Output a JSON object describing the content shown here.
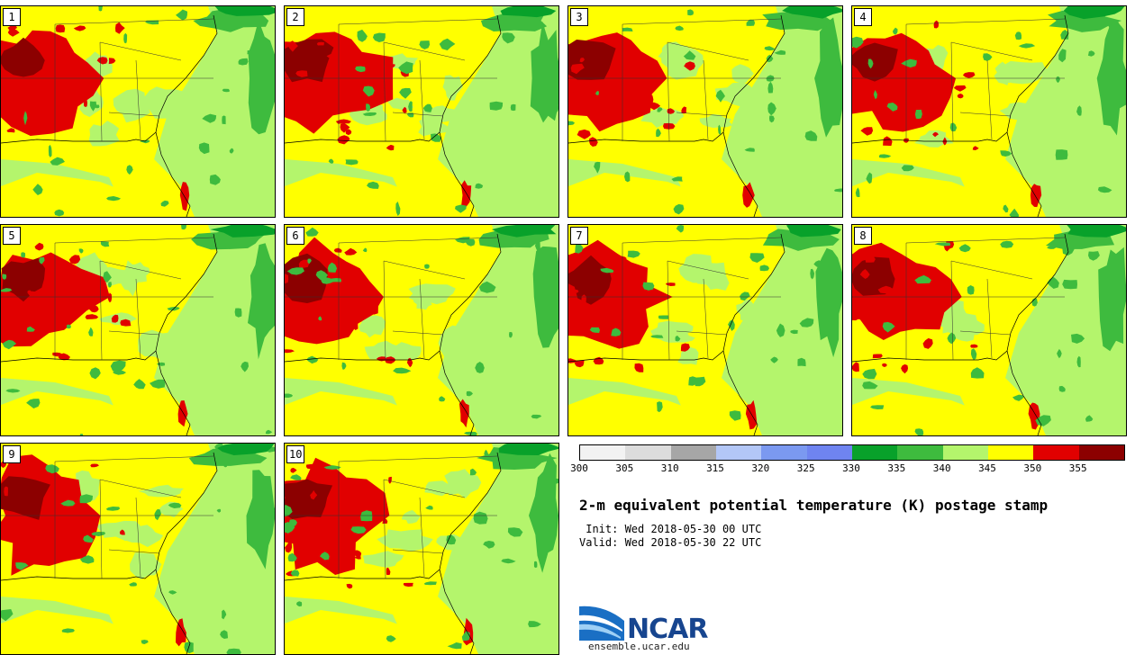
{
  "panels": [
    {
      "label": "1"
    },
    {
      "label": "2"
    },
    {
      "label": "3"
    },
    {
      "label": "4"
    },
    {
      "label": "5"
    },
    {
      "label": "6"
    },
    {
      "label": "7"
    },
    {
      "label": "8"
    },
    {
      "label": "9"
    },
    {
      "label": "10"
    }
  ],
  "colorbar": {
    "colors": [
      "#f2f2f2",
      "#dcdcdc",
      "#a6a6a6",
      "#b3c7f7",
      "#7b99f0",
      "#6f84f0",
      "#08a12a",
      "#3ebb3e",
      "#b4f56c",
      "#ffff00",
      "#e10000",
      "#8c0000"
    ],
    "ticks": [
      "300",
      "305",
      "310",
      "315",
      "320",
      "325",
      "330",
      "335",
      "340",
      "345",
      "350",
      "355"
    ]
  },
  "title": "2-m equivalent potential temperature (K) postage stamp",
  "init": " Init: Wed 2018-05-30 00 UTC",
  "valid": "Valid: Wed 2018-05-30 22 UTC",
  "logo": {
    "name": "NCAR",
    "url": "ensemble.ucar.edu"
  }
}
